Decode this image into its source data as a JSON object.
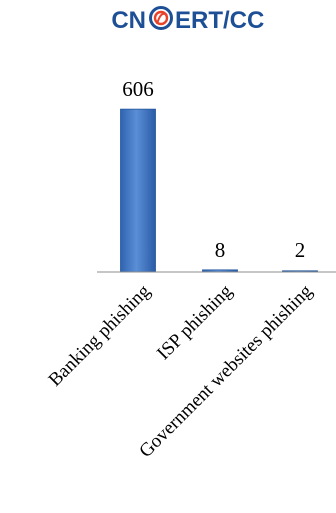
{
  "logo": {
    "text_left": "CN",
    "text_right": "ERT/CC",
    "color_text": "#1d4f97",
    "color_ring": "#1d4f97",
    "color_accent": "#e8422b"
  },
  "chart_data": {
    "type": "bar",
    "categories": [
      "Banking phishing",
      "ISP phishing",
      "Government websites phishing"
    ],
    "values": [
      606,
      8,
      2
    ],
    "data_labels": [
      "606",
      "8",
      "2"
    ],
    "bar_color": "#3b73c2",
    "bar_edge_color": "#24589e",
    "ylim": [
      0,
      640
    ],
    "grid": false,
    "legend": "none"
  }
}
